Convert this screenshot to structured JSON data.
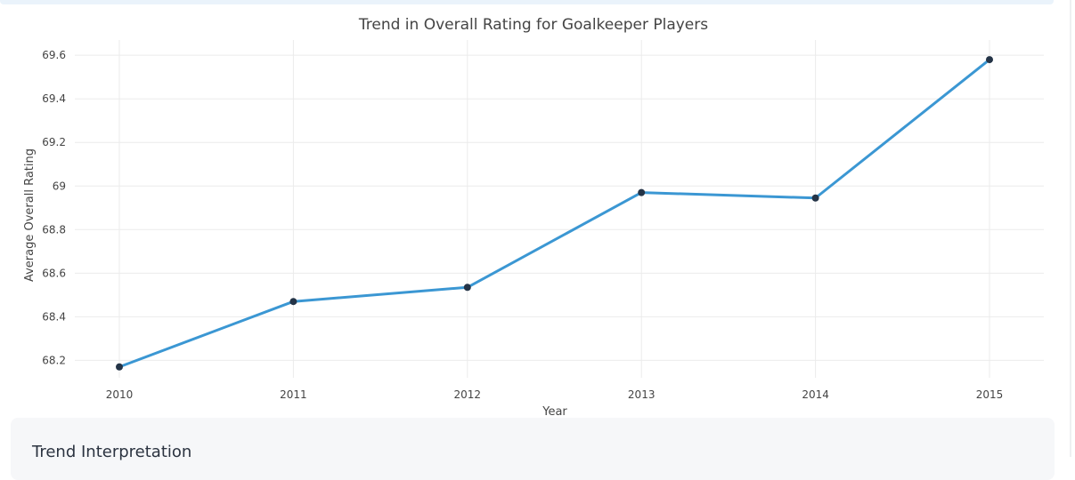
{
  "chart_data": {
    "type": "line",
    "title": "Trend in Overall Rating for Goalkeeper Players",
    "xlabel": "Year",
    "ylabel": "Average Overall Rating",
    "x": [
      2010,
      2011,
      2012,
      2013,
      2014,
      2015
    ],
    "x_tick_labels": [
      "2010",
      "2011",
      "2012",
      "2013",
      "2014",
      "2015"
    ],
    "series": [
      {
        "values": [
          68.17,
          68.47,
          68.535,
          68.97,
          68.945,
          69.58
        ]
      }
    ],
    "y_ticks": [
      68.2,
      68.4,
      68.6,
      68.8,
      69,
      69.2,
      69.4,
      69.6
    ],
    "y_tick_labels": [
      "68.2",
      "68.4",
      "68.6",
      "68.8",
      "69",
      "69.2",
      "69.4",
      "69.6"
    ],
    "ylim": [
      68.12,
      69.67
    ],
    "grid": true,
    "legend": "none",
    "colors": {
      "line": "#3b97d3",
      "marker": "#243447",
      "grid": "#ebebeb"
    }
  },
  "interpretation": {
    "heading": "Trend Interpretation"
  }
}
